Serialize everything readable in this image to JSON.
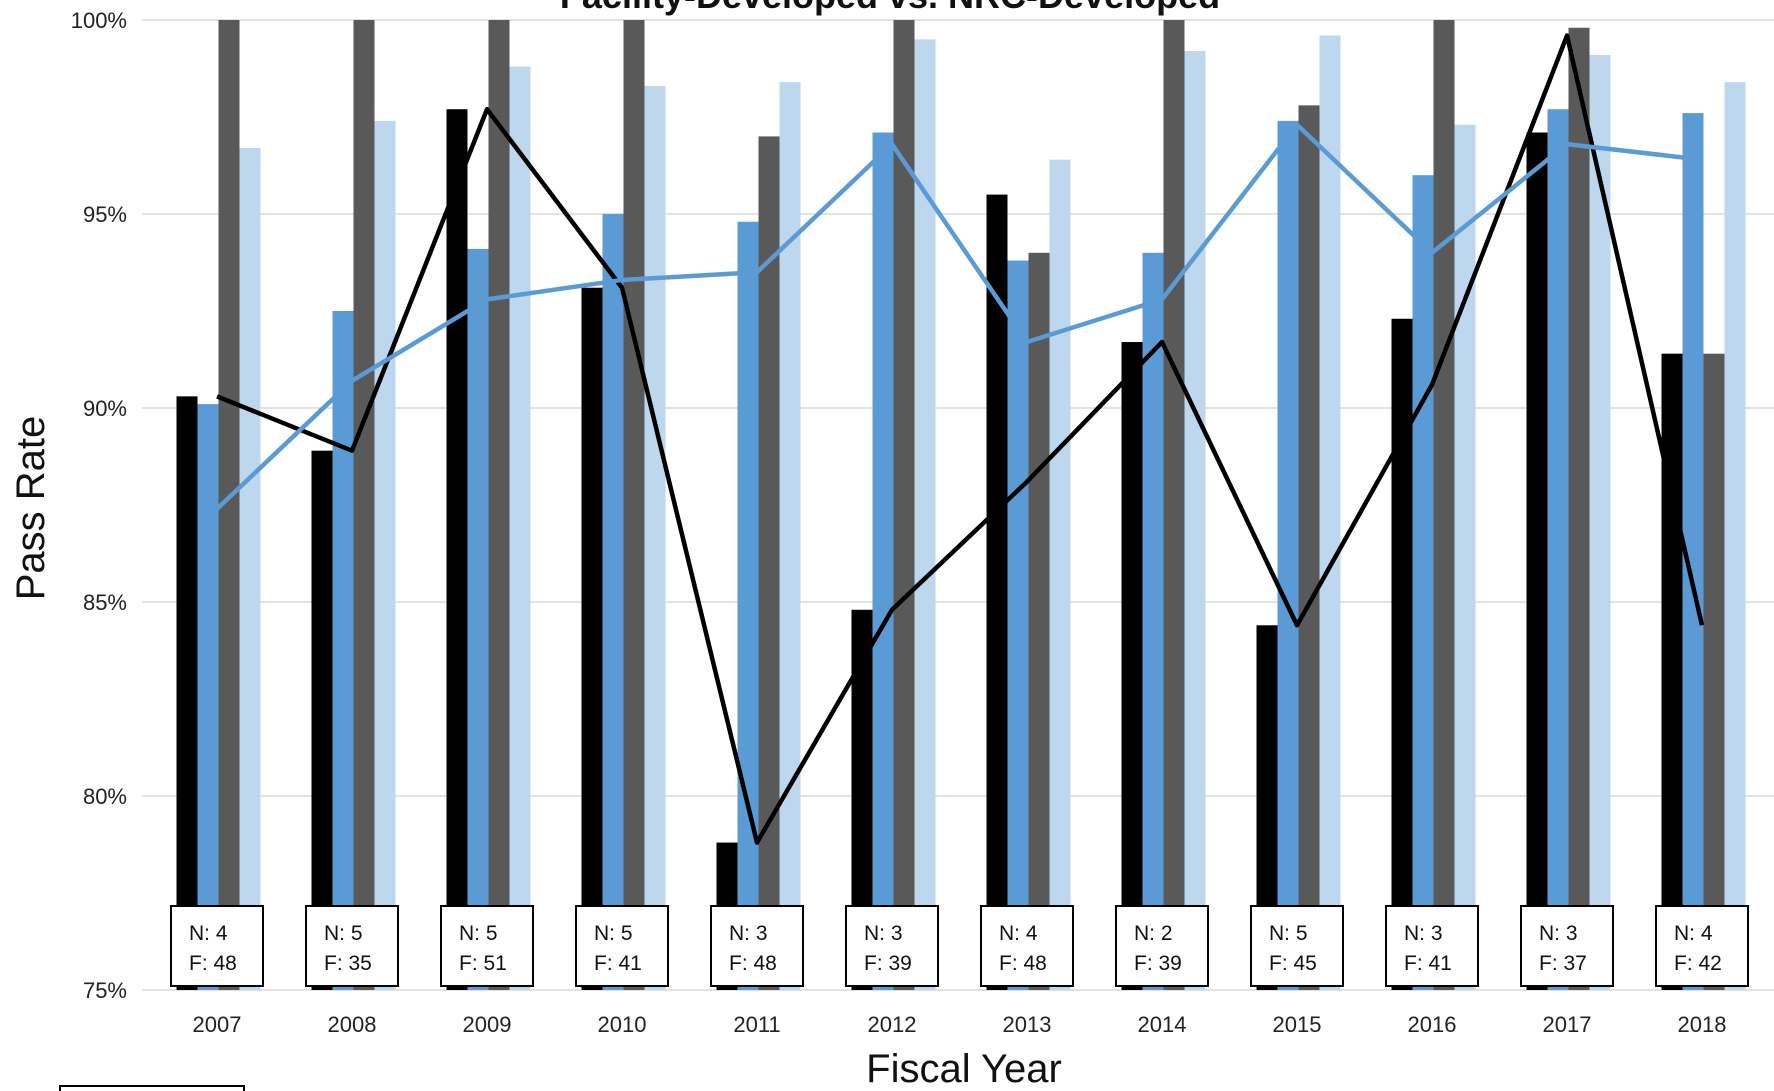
{
  "chart_data": {
    "type": "bar",
    "title": "Facility-Developed vs. NRC-Developed",
    "xlabel": "Fiscal Year",
    "ylabel": "Pass Rate",
    "ylim": [
      75,
      100
    ],
    "yticks": [
      "75%",
      "80%",
      "85%",
      "90%",
      "95%",
      "100%"
    ],
    "grid": true,
    "categories": [
      "2007",
      "2008",
      "2009",
      "2010",
      "2011",
      "2012",
      "2013",
      "2014",
      "2015",
      "2016",
      "2017",
      "2018"
    ],
    "series": [
      {
        "values": [
          90.3,
          88.9,
          97.7,
          93.1,
          78.8,
          84.8,
          95.5,
          91.7,
          84.4,
          92.3,
          97.1,
          91.4
        ],
        "color": "#000000"
      },
      {
        "values": [
          90.1,
          92.5,
          94.1,
          95.0,
          94.8,
          97.1,
          93.8,
          94.0,
          97.4,
          96.0,
          97.7,
          97.6
        ],
        "color": "#5b9bd5"
      },
      {
        "values": [
          100,
          100,
          100,
          100,
          97.0,
          100,
          94.0,
          100,
          97.8,
          100,
          99.8,
          91.4
        ],
        "color": "#595959"
      },
      {
        "values": [
          96.7,
          97.4,
          98.8,
          98.3,
          98.4,
          99.5,
          96.4,
          99.2,
          99.6,
          97.3,
          99.1,
          98.4
        ],
        "color": "#bdd7ee"
      }
    ],
    "lines": [
      {
        "values": [
          90.3,
          88.9,
          97.7,
          93.1,
          78.8,
          84.8,
          88.1,
          91.7,
          84.4,
          90.6,
          99.6,
          84.4
        ],
        "color": "#000000"
      },
      {
        "values": [
          87.4,
          90.7,
          92.8,
          93.3,
          93.5,
          96.8,
          91.7,
          92.8,
          97.3,
          94.0,
          96.8,
          96.4
        ],
        "color": "#5b9bd5"
      }
    ],
    "annotations": [
      {
        "n": "N: 4",
        "f": "F: 48"
      },
      {
        "n": "N: 5",
        "f": "F: 35"
      },
      {
        "n": "N: 5",
        "f": "F: 51"
      },
      {
        "n": "N: 5",
        "f": "F: 41"
      },
      {
        "n": "N: 3",
        "f": "F: 48"
      },
      {
        "n": "N: 3",
        "f": "F: 39"
      },
      {
        "n": "N: 4",
        "f": "F: 48"
      },
      {
        "n": "N: 2",
        "f": "F: 39"
      },
      {
        "n": "N: 5",
        "f": "F: 45"
      },
      {
        "n": "N: 3",
        "f": "F: 41"
      },
      {
        "n": "N: 3",
        "f": "F: 37"
      },
      {
        "n": "N: 4",
        "f": "F: 42"
      }
    ]
  }
}
